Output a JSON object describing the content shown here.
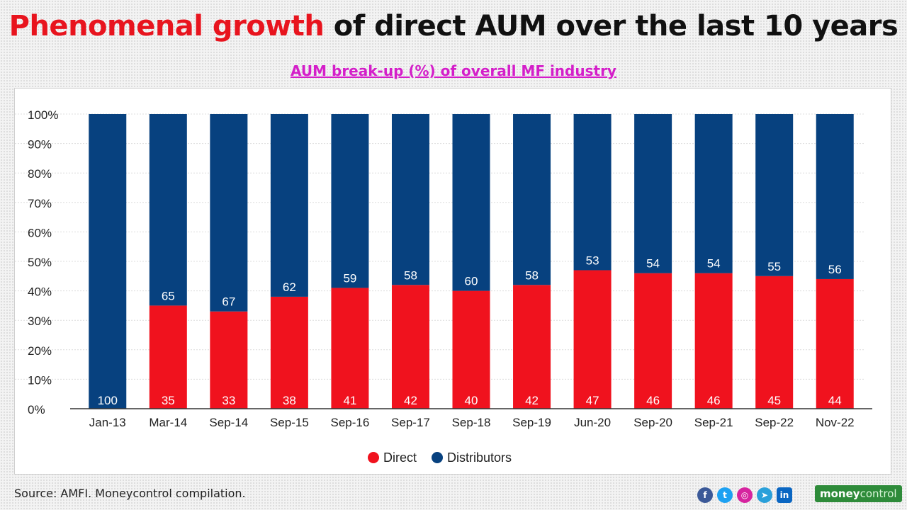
{
  "title": {
    "highlight": "Phenomenal growth",
    "rest": "of direct AUM over the last 10 years"
  },
  "subtitle": "AUM break-up (%) of overall MF industry",
  "colors": {
    "direct": "#f0121e",
    "distributors": "#07417f",
    "title_highlight": "#e8141e",
    "subtitle": "#d41ec9"
  },
  "chart_data": {
    "type": "bar",
    "stacked": true,
    "categories": [
      "Jan-13",
      "Mar-14",
      "Sep-14",
      "Sep-15",
      "Sep-16",
      "Sep-17",
      "Sep-18",
      "Sep-19",
      "Jun-20",
      "Sep-20",
      "Sep-21",
      "Sep-22",
      "Nov-22"
    ],
    "series": [
      {
        "name": "Direct",
        "color": "#f0121e",
        "values": [
          0,
          35,
          33,
          38,
          41,
          42,
          40,
          42,
          47,
          46,
          46,
          45,
          44
        ]
      },
      {
        "name": "Distributors",
        "color": "#07417f",
        "values": [
          100,
          65,
          67,
          62,
          59,
          58,
          60,
          58,
          53,
          54,
          54,
          55,
          56
        ]
      }
    ],
    "y_ticks": [
      "0%",
      "10%",
      "20%",
      "30%",
      "40%",
      "50%",
      "60%",
      "70%",
      "80%",
      "90%",
      "100%"
    ],
    "ylim": [
      0,
      100
    ],
    "grid": true,
    "legend_position": "bottom-center"
  },
  "footer": {
    "source": "Source: AMFI. Moneycontrol compilation.",
    "brand_a": "money",
    "brand_b": "control",
    "social_icons": [
      "facebook-icon",
      "twitter-icon",
      "instagram-icon",
      "telegram-icon",
      "linkedin-icon"
    ]
  }
}
